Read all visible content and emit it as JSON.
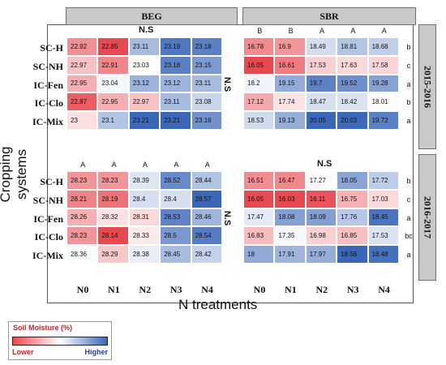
{
  "chart_data": {
    "type": "heatmap",
    "xlabel": "N treatments",
    "ylabel": "Cropping systems",
    "columns": [
      "N0",
      "N1",
      "N2",
      "N3",
      "N4"
    ],
    "crops": [
      "BEG",
      "SBR"
    ],
    "years": [
      "2015-2016",
      "2016-2017"
    ],
    "panels": [
      {
        "crop": "BEG",
        "year": "2015-2016",
        "rows": [
          "SC-H",
          "SC-NH",
          "IC-Fen",
          "IC-Clo",
          "IC-Mix"
        ],
        "values": [
          [
            22.92,
            22.85,
            23.11,
            23.19,
            23.18
          ],
          [
            22.97,
            22.91,
            23.03,
            23.18,
            23.15
          ],
          [
            22.95,
            23.04,
            23.12,
            23.12,
            23.11
          ],
          [
            22.87,
            22.95,
            22.97,
            23.11,
            23.08
          ],
          [
            23,
            23.1,
            23.21,
            23.21,
            23.16
          ]
        ],
        "column_letters": [],
        "header_note": "N.S",
        "side_note": "N.S",
        "row_letters": []
      },
      {
        "crop": "SBR",
        "year": "2015-2016",
        "rows": [
          "SC-H",
          "SC-NH",
          "IC-Fen",
          "IC-Clo",
          "IC-Mix"
        ],
        "values": [
          [
            16.78,
            16.9,
            18.49,
            18.81,
            18.68
          ],
          [
            16.05,
            16.61,
            17.53,
            17.63,
            17.58
          ],
          [
            18.2,
            19.15,
            19.7,
            19.52,
            19.28
          ],
          [
            17.12,
            17.74,
            18.47,
            18.42,
            18.01
          ],
          [
            18.53,
            19.13,
            20.05,
            20.03,
            19.72
          ]
        ],
        "column_letters": [
          "B",
          "B",
          "A",
          "A",
          "A"
        ],
        "header_note": "",
        "side_note": "",
        "row_letters": [
          "b",
          "c",
          "a",
          "b",
          "a"
        ]
      },
      {
        "crop": "BEG",
        "year": "2016-2017",
        "rows": [
          "SC-H",
          "SC-NH",
          "IC-Fen",
          "IC-Clo",
          "IC-Mix"
        ],
        "values": [
          [
            28.23,
            28.23,
            28.39,
            28.52,
            28.44
          ],
          [
            28.21,
            28.19,
            28.4,
            28.4,
            28.57
          ],
          [
            28.26,
            28.32,
            28.31,
            28.53,
            28.46
          ],
          [
            28.23,
            28.14,
            28.33,
            28.5,
            28.54
          ],
          [
            28.36,
            28.29,
            28.38,
            28.45,
            28.42
          ]
        ],
        "column_letters": [
          "A",
          "A",
          "A",
          "A",
          "A"
        ],
        "header_note": "",
        "side_note": "N.S",
        "row_letters": []
      },
      {
        "crop": "SBR",
        "year": "2016-2017",
        "rows": [
          "SC-H",
          "SC-NH",
          "IC-Fen",
          "IC-Clo",
          "IC-Mix"
        ],
        "values": [
          [
            16.51,
            16.47,
            17.27,
            18.05,
            17.72
          ],
          [
            16.05,
            16.03,
            16.11,
            16.75,
            17.03
          ],
          [
            17.47,
            18.08,
            18.09,
            17.76,
            18.45
          ],
          [
            16.83,
            17.35,
            16.98,
            16.85,
            17.53
          ],
          [
            18,
            17.91,
            17.97,
            18.56,
            18.48
          ]
        ],
        "column_letters": [],
        "header_note": "N.S",
        "side_note": "",
        "row_letters": [
          "b",
          "c",
          "a",
          "bc",
          "a"
        ]
      }
    ],
    "row_labels": {
      "2015-2016": [
        "SC-H",
        "SC-NH",
        "IC-Fen",
        "IC-Clo",
        "IC-Mix"
      ],
      "2016-2017": [
        "SC-H",
        "SC-NH",
        "IC-Fen",
        "IC-Clo",
        "IC-Mix"
      ]
    },
    "row_labels_as_printed": {
      "2015-2016": [
        "SC-H",
        "SC-NH",
        "IC-Fen",
        "IC-Clo",
        "IC-Mix"
      ],
      "2016-2017": [
        "SC-H",
        "SC-NH",
        "IC-Fen",
        "IC-Clo",
        "IC-Mix"
      ]
    },
    "legend": {
      "title": "Soil Moisture (%)",
      "low_label": "Lower",
      "high_label": "Higher",
      "low_color": "#e8484f",
      "mid_color": "#ffffff",
      "high_color": "#3a67b8"
    }
  }
}
